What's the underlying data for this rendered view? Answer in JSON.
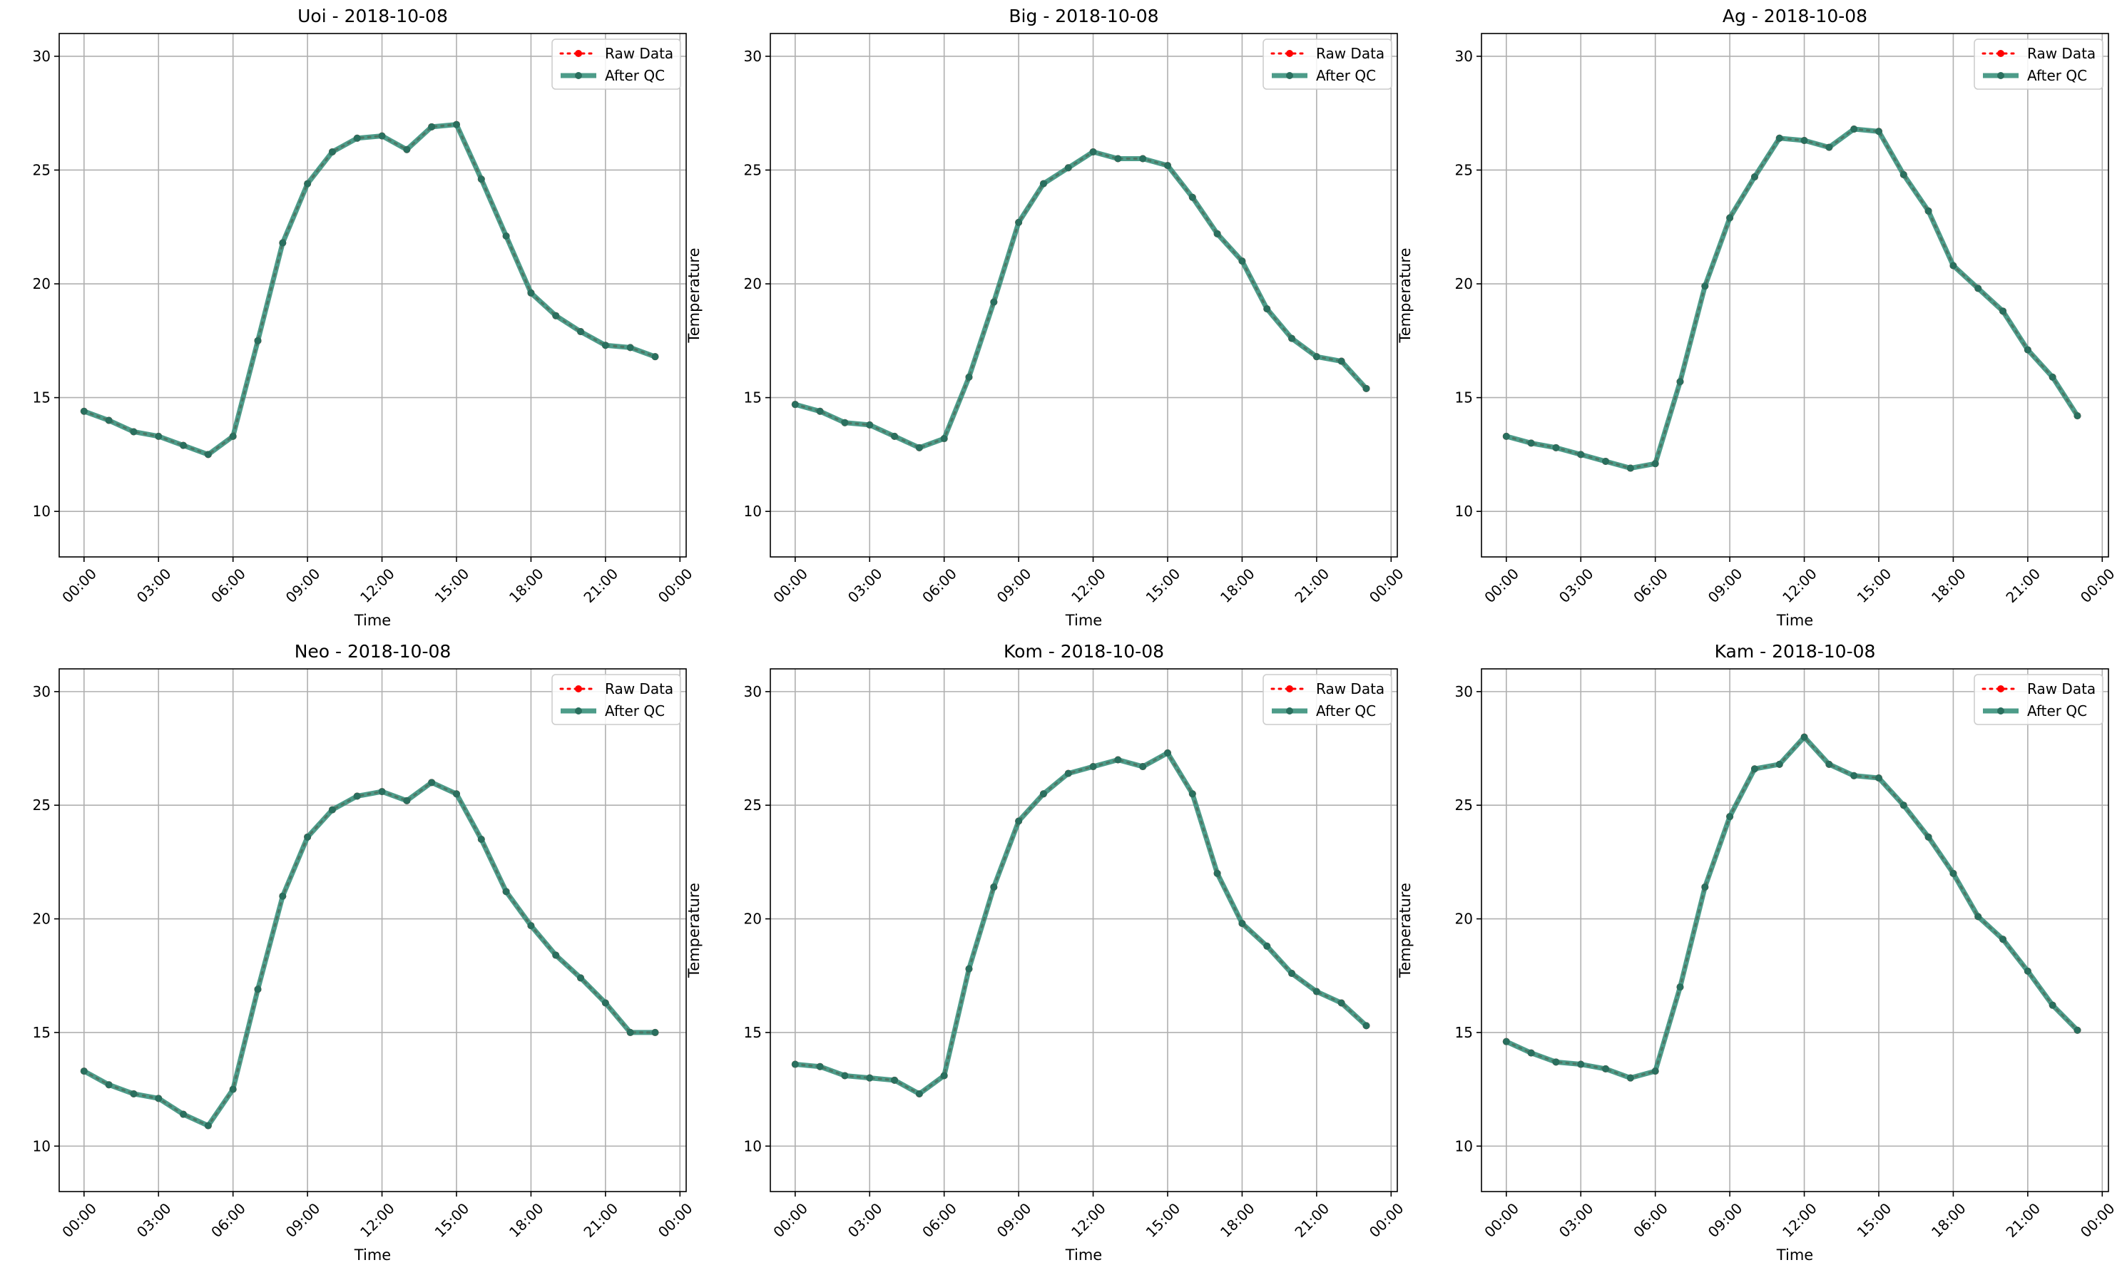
{
  "chart_data": [
    {
      "type": "line",
      "title": "Uoi - 2018-10-08",
      "xlabel": "Time",
      "ylabel": "Temperature",
      "x_ticks": [
        "00:00",
        "03:00",
        "06:00",
        "09:00",
        "12:00",
        "15:00",
        "18:00",
        "21:00",
        "00:00"
      ],
      "y_ticks": [
        "10",
        "15",
        "20",
        "25",
        "30"
      ],
      "ylim": [
        8,
        31
      ],
      "grid": true,
      "legend_position": "top-right",
      "x": [
        0,
        1,
        2,
        3,
        4,
        5,
        6,
        7,
        8,
        9,
        10,
        11,
        12,
        13,
        14,
        15,
        16,
        17,
        18,
        19,
        20,
        21,
        22,
        23
      ],
      "series": [
        {
          "name": "Raw Data",
          "color": "#ff0000",
          "values": [
            14.4,
            14.0,
            13.5,
            13.3,
            12.9,
            12.5,
            13.3,
            17.5,
            21.8,
            24.4,
            25.8,
            26.4,
            26.5,
            25.9,
            26.9,
            27.0,
            24.6,
            22.1,
            19.6,
            18.6,
            17.9,
            17.3,
            17.2,
            16.8
          ]
        },
        {
          "name": "After QC",
          "color": "#2e8b75",
          "values": [
            14.4,
            14.0,
            13.5,
            13.3,
            12.9,
            12.5,
            13.3,
            17.5,
            21.8,
            24.4,
            25.8,
            26.4,
            26.5,
            25.9,
            26.9,
            27.0,
            24.6,
            22.1,
            19.6,
            18.6,
            17.9,
            17.3,
            17.2,
            16.8
          ]
        }
      ]
    },
    {
      "type": "line",
      "title": "Big - 2018-10-08",
      "xlabel": "Time",
      "ylabel": "Temperature",
      "x_ticks": [
        "00:00",
        "03:00",
        "06:00",
        "09:00",
        "12:00",
        "15:00",
        "18:00",
        "21:00",
        "00:00"
      ],
      "y_ticks": [
        "10",
        "15",
        "20",
        "25",
        "30"
      ],
      "ylim": [
        8,
        31
      ],
      "grid": true,
      "legend_position": "top-right",
      "x": [
        0,
        1,
        2,
        3,
        4,
        5,
        6,
        7,
        8,
        9,
        10,
        11,
        12,
        13,
        14,
        15,
        16,
        17,
        18,
        19,
        20,
        21,
        22,
        23
      ],
      "series": [
        {
          "name": "Raw Data",
          "color": "#ff0000",
          "values": [
            14.7,
            14.4,
            13.9,
            13.8,
            13.3,
            12.8,
            13.2,
            15.9,
            19.2,
            22.7,
            24.4,
            25.1,
            25.8,
            25.5,
            25.5,
            25.2,
            23.8,
            22.2,
            21.0,
            18.9,
            17.6,
            16.8,
            16.6,
            15.4
          ]
        },
        {
          "name": "After QC",
          "color": "#2e8b75",
          "values": [
            14.7,
            14.4,
            13.9,
            13.8,
            13.3,
            12.8,
            13.2,
            15.9,
            19.2,
            22.7,
            24.4,
            25.1,
            25.8,
            25.5,
            25.5,
            25.2,
            23.8,
            22.2,
            21.0,
            18.9,
            17.6,
            16.8,
            16.6,
            15.4
          ]
        }
      ]
    },
    {
      "type": "line",
      "title": "Ag - 2018-10-08",
      "xlabel": "Time",
      "ylabel": "Temperature",
      "x_ticks": [
        "00:00",
        "03:00",
        "06:00",
        "09:00",
        "12:00",
        "15:00",
        "18:00",
        "21:00",
        "00:00"
      ],
      "y_ticks": [
        "10",
        "15",
        "20",
        "25",
        "30"
      ],
      "ylim": [
        8,
        31
      ],
      "grid": true,
      "legend_position": "top-right",
      "x": [
        0,
        1,
        2,
        3,
        4,
        5,
        6,
        7,
        8,
        9,
        10,
        11,
        12,
        13,
        14,
        15,
        16,
        17,
        18,
        19,
        20,
        21,
        22,
        23
      ],
      "series": [
        {
          "name": "Raw Data",
          "color": "#ff0000",
          "values": [
            13.3,
            13.0,
            12.8,
            12.5,
            12.2,
            11.9,
            12.1,
            15.7,
            19.9,
            22.9,
            24.7,
            26.4,
            26.3,
            26.0,
            26.8,
            26.7,
            24.8,
            23.2,
            20.8,
            19.8,
            18.8,
            17.1,
            15.9,
            14.2
          ]
        },
        {
          "name": "After QC",
          "color": "#2e8b75",
          "values": [
            13.3,
            13.0,
            12.8,
            12.5,
            12.2,
            11.9,
            12.1,
            15.7,
            19.9,
            22.9,
            24.7,
            26.4,
            26.3,
            26.0,
            26.8,
            26.7,
            24.8,
            23.2,
            20.8,
            19.8,
            18.8,
            17.1,
            15.9,
            14.2
          ]
        }
      ]
    },
    {
      "type": "line",
      "title": "Neo - 2018-10-08",
      "xlabel": "Time",
      "ylabel": "Temperature",
      "x_ticks": [
        "00:00",
        "03:00",
        "06:00",
        "09:00",
        "12:00",
        "15:00",
        "18:00",
        "21:00",
        "00:00"
      ],
      "y_ticks": [
        "10",
        "15",
        "20",
        "25",
        "30"
      ],
      "ylim": [
        8,
        31
      ],
      "grid": true,
      "legend_position": "top-right",
      "x": [
        0,
        1,
        2,
        3,
        4,
        5,
        6,
        7,
        8,
        9,
        10,
        11,
        12,
        13,
        14,
        15,
        16,
        17,
        18,
        19,
        20,
        21,
        22,
        23
      ],
      "series": [
        {
          "name": "Raw Data",
          "color": "#ff0000",
          "values": [
            13.3,
            12.7,
            12.3,
            12.1,
            11.4,
            10.9,
            12.5,
            16.9,
            21.0,
            23.6,
            24.8,
            25.4,
            25.6,
            25.2,
            26.0,
            25.5,
            23.5,
            21.2,
            19.7,
            18.4,
            17.4,
            16.3,
            15.0,
            15.0
          ]
        },
        {
          "name": "After QC",
          "color": "#2e8b75",
          "values": [
            13.3,
            12.7,
            12.3,
            12.1,
            11.4,
            10.9,
            12.5,
            16.9,
            21.0,
            23.6,
            24.8,
            25.4,
            25.6,
            25.2,
            26.0,
            25.5,
            23.5,
            21.2,
            19.7,
            18.4,
            17.4,
            16.3,
            15.0,
            15.0
          ]
        }
      ]
    },
    {
      "type": "line",
      "title": "Kom - 2018-10-08",
      "xlabel": "Time",
      "ylabel": "Temperature",
      "x_ticks": [
        "00:00",
        "03:00",
        "06:00",
        "09:00",
        "12:00",
        "15:00",
        "18:00",
        "21:00",
        "00:00"
      ],
      "y_ticks": [
        "10",
        "15",
        "20",
        "25",
        "30"
      ],
      "ylim": [
        8,
        31
      ],
      "grid": true,
      "legend_position": "top-right",
      "x": [
        0,
        1,
        2,
        3,
        4,
        5,
        6,
        7,
        8,
        9,
        10,
        11,
        12,
        13,
        14,
        15,
        16,
        17,
        18,
        19,
        20,
        21,
        22,
        23
      ],
      "series": [
        {
          "name": "Raw Data",
          "color": "#ff0000",
          "values": [
            13.6,
            13.5,
            13.1,
            13.0,
            12.9,
            12.3,
            13.1,
            17.8,
            21.4,
            24.3,
            25.5,
            26.4,
            26.7,
            27.0,
            26.7,
            27.3,
            25.5,
            22.0,
            19.8,
            18.8,
            17.6,
            16.8,
            16.3,
            15.3
          ]
        },
        {
          "name": "After QC",
          "color": "#2e8b75",
          "values": [
            13.6,
            13.5,
            13.1,
            13.0,
            12.9,
            12.3,
            13.1,
            17.8,
            21.4,
            24.3,
            25.5,
            26.4,
            26.7,
            27.0,
            26.7,
            27.3,
            25.5,
            22.0,
            19.8,
            18.8,
            17.6,
            16.8,
            16.3,
            15.3
          ]
        }
      ]
    },
    {
      "type": "line",
      "title": "Kam - 2018-10-08",
      "xlabel": "Time",
      "ylabel": "Temperature",
      "x_ticks": [
        "00:00",
        "03:00",
        "06:00",
        "09:00",
        "12:00",
        "15:00",
        "18:00",
        "21:00",
        "00:00"
      ],
      "y_ticks": [
        "10",
        "15",
        "20",
        "25",
        "30"
      ],
      "ylim": [
        8,
        31
      ],
      "grid": true,
      "legend_position": "top-right",
      "x": [
        0,
        1,
        2,
        3,
        4,
        5,
        6,
        7,
        8,
        9,
        10,
        11,
        12,
        13,
        14,
        15,
        16,
        17,
        18,
        19,
        20,
        21,
        22,
        23
      ],
      "series": [
        {
          "name": "Raw Data",
          "color": "#ff0000",
          "values": [
            14.6,
            14.1,
            13.7,
            13.6,
            13.4,
            13.0,
            13.3,
            17.0,
            21.4,
            24.5,
            26.6,
            26.8,
            28.0,
            26.8,
            26.3,
            26.2,
            25.0,
            23.6,
            22.0,
            20.1,
            19.1,
            17.7,
            16.2,
            15.1
          ]
        },
        {
          "name": "After QC",
          "color": "#2e8b75",
          "values": [
            14.6,
            14.1,
            13.7,
            13.6,
            13.4,
            13.0,
            13.3,
            17.0,
            21.4,
            24.5,
            26.6,
            26.8,
            28.0,
            26.8,
            26.3,
            26.2,
            25.0,
            23.6,
            22.0,
            20.1,
            19.1,
            17.7,
            16.2,
            15.1
          ]
        }
      ]
    }
  ]
}
